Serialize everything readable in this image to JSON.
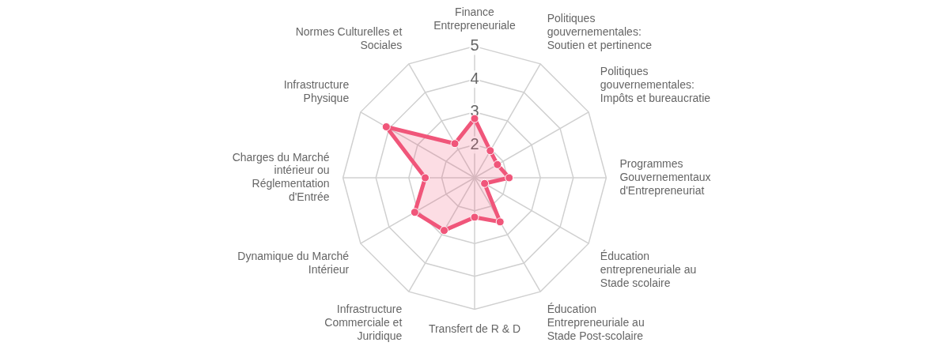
{
  "chart_data": {
    "type": "radar",
    "categories": [
      "Finance Entrepreneuriale",
      "Politiques gouvernementales: Soutien et pertinence",
      "Politiques gouvernementales: Impôts et bureaucratie",
      "Programmes Gouvernementaux d'Entrepreneuriat",
      "Éducation entrepreneuriale au Stade scolaire",
      "Éducation Entrepreneuriale au Stade Post-scolaire",
      "Transfert de R & D",
      "Infrastructure Commerciale et Juridique",
      "Dynamique du Marché Intérieur",
      "Charges du Marché intérieur ou Réglementation d'Entrée",
      "Infrastructure Physique",
      "Normes Culturelles et Sociales"
    ],
    "series": [
      {
        "color": "#f0567a",
        "values": [
          2.8,
          1.95,
          1.8,
          2.05,
          1.35,
          2.55,
          2.2,
          2.85,
          3.1,
          2.5,
          4.1,
          2.2
        ]
      }
    ],
    "ylim": [
      1,
      5
    ],
    "yticks": [
      2,
      3,
      4,
      5
    ],
    "grid": true,
    "marker": "circle",
    "legend": false
  }
}
